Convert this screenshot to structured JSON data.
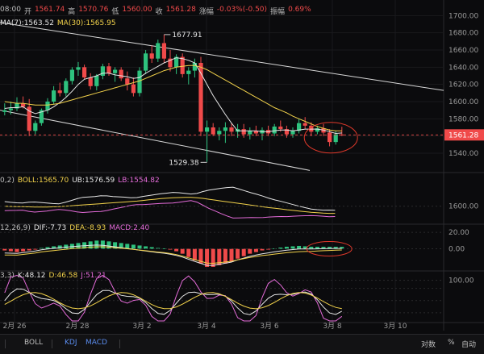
{
  "header": {
    "time_fragment": "08:00",
    "open_label": "开",
    "open_value": "1561.74",
    "high_label": "高",
    "high_value": "1570.76",
    "low_label": "低",
    "low_value": "1560.00",
    "close_label": "收",
    "close_value": "1561.28",
    "change_label": "涨幅",
    "change_value": "-0.03%(-0.50)",
    "amplitude_label": "振幅",
    "amplitude_value": "0.69%"
  },
  "ma_legend": {
    "ma7": "MA(7):1563.52",
    "ma30": "MA(30):1565.95"
  },
  "boll_legend": {
    "params": "0,2)",
    "boll": "BOLL:1565.70",
    "ub": "UB:1576.59",
    "lb": "LB:1554.82"
  },
  "macd_legend": {
    "params": "12,26,9)",
    "dif": "DIF:-7.73",
    "dea": "DEA:-8.93",
    "macd": "MACD:2.40"
  },
  "kdj_legend": {
    "params": "3,3)",
    "k": "K:48.12",
    "d": "D:46.58",
    "j": "J:51.21"
  },
  "bottom_bar": {
    "boll": "BOLL",
    "kdj": "KDJ",
    "macd": "MACD",
    "log": "对数",
    "pct": "%",
    "auto": "自动"
  },
  "colors": {
    "up": "#2ec27e",
    "down": "#f04a4a",
    "ma7": "#e6e6e6",
    "ma30": "#f2d24b",
    "boll_mid": "#f2d24b",
    "boll_upper": "#e6e6e6",
    "boll_lower": "#e36bd8",
    "price_tag": "#f04a4a",
    "annotation_circle": "#e0392b"
  },
  "chart_data": [
    {
      "type": "candlestick",
      "x_tick_labels": [
        "2月 26",
        "2月 28",
        "3月 2",
        "3月 4",
        "3月 6",
        "3月 8",
        "3月 10"
      ],
      "y_tick_labels": [
        "1700.00",
        "1680.00",
        "1660.00",
        "1640.00",
        "1620.00",
        "1600.00",
        "1580.00",
        "1560.00",
        "1540.00"
      ],
      "ylim": [
        1525,
        1705
      ],
      "grid": true,
      "current_price": "1561.28",
      "annotations": {
        "high": "1677.91",
        "low": "1529.38"
      },
      "trend_channel": {
        "upper": [
          [
            "2月 26",
            1692
          ],
          [
            "3月 10",
            1613
          ]
        ],
        "lower": [
          [
            "2月 26",
            1590
          ],
          [
            "3月 6",
            1520
          ]
        ]
      },
      "candles": [
        [
          1588,
          1598,
          1584,
          1590
        ],
        [
          1590,
          1600,
          1585,
          1592
        ],
        [
          1592,
          1605,
          1589,
          1598
        ],
        [
          1598,
          1606,
          1592,
          1594
        ],
        [
          1594,
          1603,
          1560,
          1566
        ],
        [
          1566,
          1578,
          1562,
          1575
        ],
        [
          1575,
          1592,
          1572,
          1590
        ],
        [
          1590,
          1604,
          1586,
          1600
        ],
        [
          1600,
          1618,
          1597,
          1613
        ],
        [
          1613,
          1622,
          1606,
          1610
        ],
        [
          1610,
          1627,
          1606,
          1624
        ],
        [
          1624,
          1640,
          1620,
          1637
        ],
        [
          1637,
          1646,
          1630,
          1640
        ],
        [
          1640,
          1643,
          1626,
          1628
        ],
        [
          1628,
          1633,
          1614,
          1618
        ],
        [
          1618,
          1632,
          1613,
          1630
        ],
        [
          1630,
          1644,
          1626,
          1641
        ],
        [
          1641,
          1645,
          1630,
          1633
        ],
        [
          1633,
          1640,
          1623,
          1637
        ],
        [
          1637,
          1640,
          1624,
          1627
        ],
        [
          1627,
          1635,
          1613,
          1620
        ],
        [
          1620,
          1628,
          1606,
          1610
        ],
        [
          1610,
          1640,
          1606,
          1636
        ],
        [
          1636,
          1660,
          1632,
          1656
        ],
        [
          1656,
          1665,
          1645,
          1650
        ],
        [
          1650,
          1672,
          1646,
          1668
        ],
        [
          1668,
          1678,
          1645,
          1650
        ],
        [
          1650,
          1660,
          1635,
          1640
        ],
        [
          1640,
          1655,
          1632,
          1652
        ],
        [
          1652,
          1656,
          1628,
          1632
        ],
        [
          1632,
          1640,
          1620,
          1636
        ],
        [
          1636,
          1650,
          1628,
          1645
        ],
        [
          1645,
          1652,
          1560,
          1565
        ],
        [
          1565,
          1578,
          1530,
          1570
        ],
        [
          1570,
          1575,
          1560,
          1562
        ],
        [
          1562,
          1570,
          1555,
          1566
        ],
        [
          1566,
          1576,
          1552,
          1570
        ],
        [
          1570,
          1575,
          1560,
          1565
        ],
        [
          1565,
          1574,
          1558,
          1568
        ],
        [
          1568,
          1574,
          1558,
          1562
        ],
        [
          1562,
          1570,
          1556,
          1566
        ],
        [
          1566,
          1572,
          1560,
          1563
        ],
        [
          1563,
          1570,
          1555,
          1567
        ],
        [
          1567,
          1572,
          1560,
          1563
        ],
        [
          1563,
          1574,
          1560,
          1571
        ],
        [
          1571,
          1578,
          1565,
          1568
        ],
        [
          1568,
          1572,
          1558,
          1562
        ],
        [
          1562,
          1570,
          1558,
          1566
        ],
        [
          1566,
          1580,
          1563,
          1575
        ],
        [
          1575,
          1582,
          1568,
          1572
        ],
        [
          1572,
          1576,
          1560,
          1565
        ],
        [
          1565,
          1572,
          1562,
          1569
        ],
        [
          1569,
          1574,
          1560,
          1564
        ],
        [
          1564,
          1568,
          1548,
          1553
        ],
        [
          1553,
          1566,
          1550,
          1562
        ],
        [
          1561.74,
          1570.76,
          1560,
          1561.28
        ]
      ],
      "series": [
        {
          "name": "MA(7)",
          "values": [
            1592,
            1593,
            1593,
            1594,
            1589,
            1586,
            1588,
            1590,
            1594,
            1599,
            1605,
            1612,
            1620,
            1626,
            1628,
            1630,
            1633,
            1633,
            1631,
            1630,
            1629,
            1627,
            1628,
            1633,
            1637,
            1641,
            1645,
            1648,
            1651,
            1650,
            1648,
            1645,
            1633,
            1620,
            1607,
            1596,
            1585,
            1575,
            1566,
            1566,
            1566,
            1566,
            1565,
            1565,
            1566,
            1567,
            1567,
            1566,
            1567,
            1568,
            1568,
            1568,
            1567,
            1565,
            1563,
            1563.52
          ]
        },
        {
          "name": "MA(30)",
          "values": [
            1600,
            1599,
            1598,
            1598,
            1597,
            1596,
            1596,
            1596,
            1597,
            1598,
            1600,
            1602,
            1604,
            1606,
            1608,
            1610,
            1612,
            1614,
            1616,
            1618,
            1620,
            1622,
            1624,
            1627,
            1630,
            1633,
            1636,
            1638,
            1640,
            1641,
            1642,
            1642,
            1640,
            1637,
            1633,
            1629,
            1625,
            1621,
            1617,
            1613,
            1609,
            1605,
            1601,
            1597,
            1593,
            1590,
            1587,
            1583,
            1580,
            1577,
            1574,
            1571,
            1569,
            1567,
            1566,
            1565.95
          ]
        }
      ]
    },
    {
      "type": "line",
      "name": "BOLL",
      "y_tick_labels": [
        "1600.00"
      ],
      "series": [
        {
          "name": "BOLL",
          "values": [
            1565.7
          ]
        },
        {
          "name": "UB",
          "values": [
            1576.59
          ]
        },
        {
          "name": "LB",
          "values": [
            1554.82
          ]
        }
      ]
    },
    {
      "type": "bar",
      "name": "MACD",
      "y_tick_labels": [
        "20.00",
        "0.00"
      ],
      "ylim": [
        -25,
        28
      ],
      "values": [
        -2,
        -3,
        -4,
        -3,
        -2,
        -1,
        1,
        2,
        3,
        4,
        5,
        6,
        7,
        8,
        9,
        10,
        10,
        9,
        8,
        7,
        6,
        5,
        4,
        3,
        2,
        1,
        0.5,
        -1,
        -3,
        -6,
        -10,
        -14,
        -18,
        -22,
        -22,
        -20,
        -18,
        -16,
        -12,
        -9,
        -6,
        -4,
        -2,
        -1,
        0.5,
        1.5,
        2.5,
        3,
        3.5,
        3,
        2.5,
        2.4,
        2.4,
        2.4,
        2.4,
        2.4
      ],
      "series": [
        {
          "name": "DIF",
          "values": [
            -7.73
          ]
        },
        {
          "name": "DEA",
          "values": [
            -8.93
          ]
        }
      ]
    },
    {
      "type": "line",
      "name": "KDJ",
      "y_tick_labels": [
        "100.00"
      ],
      "series": [
        {
          "name": "K",
          "values": [
            48.12
          ]
        },
        {
          "name": "D",
          "values": [
            46.58
          ]
        },
        {
          "name": "J",
          "values": [
            51.21
          ]
        }
      ]
    }
  ]
}
